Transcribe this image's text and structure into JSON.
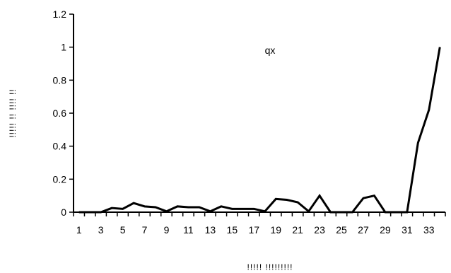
{
  "chart_data": {
    "type": "line",
    "title": "qx",
    "xlabel": "!!!!! !!!!!!!!!",
    "ylabel": "!!!!! !! !!!! !!",
    "ylim": [
      0,
      1.2
    ],
    "yticks": [
      "0",
      "0.2",
      "0.4",
      "0.6",
      "0.8",
      "1",
      "1.2"
    ],
    "xticks": [
      "1",
      "3",
      "5",
      "7",
      "9",
      "11",
      "13",
      "15",
      "17",
      "19",
      "21",
      "23",
      "25",
      "27",
      "29",
      "31",
      "33"
    ],
    "grid": false,
    "legend": "none",
    "line_color": "#000000",
    "x": [
      1,
      2,
      3,
      4,
      5,
      6,
      7,
      8,
      9,
      10,
      11,
      12,
      13,
      14,
      15,
      16,
      17,
      18,
      19,
      20,
      21,
      22,
      23,
      24,
      25,
      26,
      27,
      28,
      29,
      30,
      31,
      32,
      33,
      34
    ],
    "series": [
      {
        "values": [
          0,
          0,
          0,
          0.025,
          0.02,
          0.055,
          0.035,
          0.03,
          0.005,
          0.035,
          0.03,
          0.03,
          0.005,
          0.035,
          0.02,
          0.02,
          0.02,
          0.005,
          0.08,
          0.075,
          0.06,
          0.005,
          0.1,
          0,
          0,
          0,
          0.085,
          0.1,
          0,
          0,
          0,
          0.42,
          0.62,
          1.0
        ]
      }
    ]
  }
}
